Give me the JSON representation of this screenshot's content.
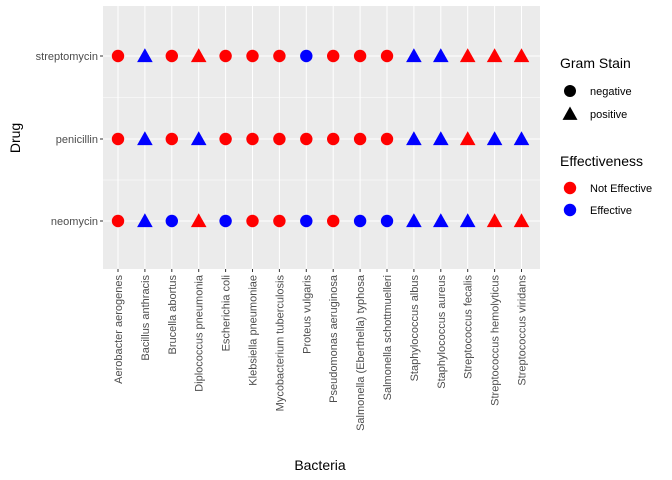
{
  "chart_data": {
    "type": "scatter",
    "xlabel": "Bacteria",
    "ylabel": "Drug",
    "categories": [
      "Aerobacter aerogenes",
      "Bacillus anthracis",
      "Brucella abortus",
      "Diplococcus pneumonia",
      "Escherichia coli",
      "Klebsiella pneumoniae",
      "Mycobacterium tuberculosis",
      "Proteus vulgaris",
      "Pseudomonas aeruginosa",
      "Salmonella (Eberthella) typhosa",
      "Salmonella schottmuelleri",
      "Staphylococcus albus",
      "Staphylococcus aureus",
      "Streptococcus fecalis",
      "Streptococcus hemolyticus",
      "Streptococcus viridans"
    ],
    "drugs": [
      "neomycin",
      "penicillin",
      "streptomycin"
    ],
    "gram_stain": [
      "negative",
      "positive",
      "negative",
      "positive",
      "negative",
      "negative",
      "negative",
      "negative",
      "negative",
      "negative",
      "negative",
      "positive",
      "positive",
      "positive",
      "positive",
      "positive"
    ],
    "effectiveness": {
      "streptomycin": [
        "Not Effective",
        "Effective",
        "Not Effective",
        "Not Effective",
        "Not Effective",
        "Not Effective",
        "Not Effective",
        "Effective",
        "Not Effective",
        "Not Effective",
        "Not Effective",
        "Effective",
        "Effective",
        "Not Effective",
        "Not Effective",
        "Not Effective"
      ],
      "penicillin": [
        "Not Effective",
        "Effective",
        "Not Effective",
        "Effective",
        "Not Effective",
        "Not Effective",
        "Not Effective",
        "Not Effective",
        "Not Effective",
        "Not Effective",
        "Not Effective",
        "Effective",
        "Effective",
        "Not Effective",
        "Effective",
        "Effective"
      ],
      "neomycin": [
        "Not Effective",
        "Effective",
        "Effective",
        "Not Effective",
        "Effective",
        "Not Effective",
        "Not Effective",
        "Effective",
        "Not Effective",
        "Effective",
        "Effective",
        "Effective",
        "Effective",
        "Effective",
        "Not Effective",
        "Not Effective"
      ]
    },
    "grid": true,
    "legend_position": "right",
    "legends": [
      {
        "title": "Gram Stain",
        "items": [
          {
            "label": "negative",
            "shape": "circle"
          },
          {
            "label": "positive",
            "shape": "triangle"
          }
        ]
      },
      {
        "title": "Effectiveness",
        "items": [
          {
            "label": "Not Effective",
            "color": "#ff0000"
          },
          {
            "label": "Effective",
            "color": "#0000ff"
          }
        ]
      }
    ]
  },
  "colors": {
    "panel_background": "#ebebeb",
    "grid": "#ffffff",
    "not_effective": "#ff0000",
    "effective": "#0000ff",
    "legend_shape": "#000000"
  }
}
